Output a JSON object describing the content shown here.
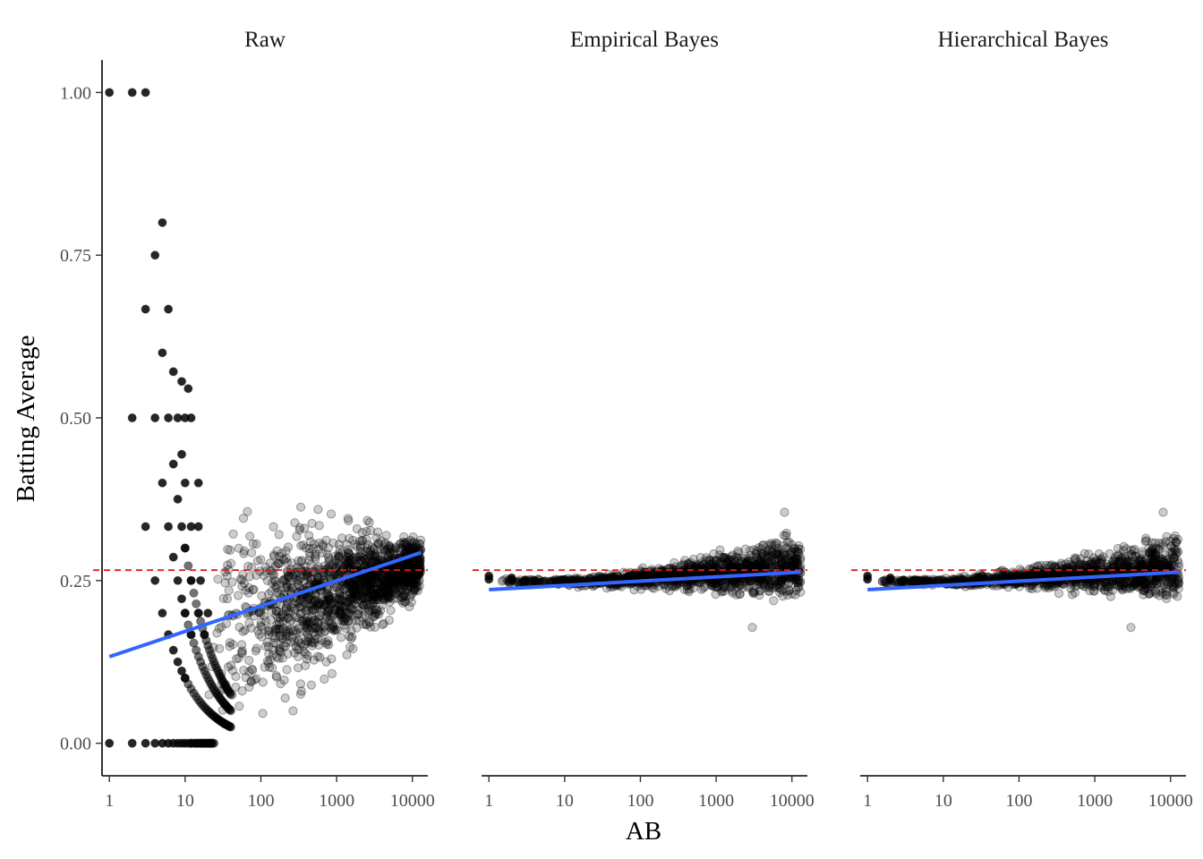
{
  "chart_data": {
    "type": "scatter",
    "xlabel": "AB",
    "ylabel": "Batting Average",
    "x_scale": "log10",
    "xlim": [
      0.8,
      16000
    ],
    "ylim": [
      -0.05,
      1.05
    ],
    "x_ticks": [
      {
        "value": 1,
        "label": "1"
      },
      {
        "value": 10,
        "label": "10"
      },
      {
        "value": 100,
        "label": "100"
      },
      {
        "value": 1000,
        "label": "1000"
      },
      {
        "value": 10000,
        "label": "10000"
      }
    ],
    "y_ticks": [
      {
        "value": 0.0,
        "label": "0.00"
      },
      {
        "value": 0.25,
        "label": "0.25"
      },
      {
        "value": 0.5,
        "label": "0.50"
      },
      {
        "value": 0.75,
        "label": "0.75"
      },
      {
        "value": 1.0,
        "label": "1.00"
      }
    ],
    "grid": false,
    "point_color": "#000000",
    "point_opacity": 0.2,
    "reference_line": {
      "y": 0.266,
      "color": "#e41a1c",
      "style": "dashed"
    },
    "trend_color": "#3366ff",
    "panels": [
      {
        "title": "Raw",
        "trend": {
          "x": [
            1,
            13000
          ],
          "y": [
            0.133,
            0.293
          ]
        },
        "cloud": {
          "x_range": [
            20,
            13000
          ],
          "center_at_x20": 0.17,
          "center_at_x13000": 0.275,
          "spread_at_x20": 0.16,
          "spread_at_x13000": 0.035
        },
        "discrete_points": [
          {
            "x": 1,
            "y": 1.0
          },
          {
            "x": 2,
            "y": 1.0
          },
          {
            "x": 3,
            "y": 1.0
          },
          {
            "x": 4,
            "y": 0.75
          },
          {
            "x": 5,
            "y": 0.8
          },
          {
            "x": 3,
            "y": 0.667
          },
          {
            "x": 6,
            "y": 0.667
          },
          {
            "x": 5,
            "y": 0.6
          },
          {
            "x": 7,
            "y": 0.571
          },
          {
            "x": 9,
            "y": 0.556
          },
          {
            "x": 11,
            "y": 0.545
          },
          {
            "x": 2,
            "y": 0.5
          },
          {
            "x": 4,
            "y": 0.5
          },
          {
            "x": 6,
            "y": 0.5
          },
          {
            "x": 8,
            "y": 0.5
          },
          {
            "x": 10,
            "y": 0.5
          },
          {
            "x": 12,
            "y": 0.5
          },
          {
            "x": 3,
            "y": 0.333
          },
          {
            "x": 6,
            "y": 0.333
          },
          {
            "x": 9,
            "y": 0.333
          },
          {
            "x": 12,
            "y": 0.333
          },
          {
            "x": 15,
            "y": 0.333
          },
          {
            "x": 4,
            "y": 0.25
          },
          {
            "x": 8,
            "y": 0.25
          },
          {
            "x": 12,
            "y": 0.25
          },
          {
            "x": 16,
            "y": 0.25
          },
          {
            "x": 5,
            "y": 0.4
          },
          {
            "x": 10,
            "y": 0.4
          },
          {
            "x": 15,
            "y": 0.4
          },
          {
            "x": 5,
            "y": 0.2
          },
          {
            "x": 10,
            "y": 0.2
          },
          {
            "x": 15,
            "y": 0.2
          },
          {
            "x": 20,
            "y": 0.2
          },
          {
            "x": 6,
            "y": 0.167
          },
          {
            "x": 12,
            "y": 0.167
          },
          {
            "x": 18,
            "y": 0.167
          },
          {
            "x": 7,
            "y": 0.143
          },
          {
            "x": 7,
            "y": 0.286
          },
          {
            "x": 7,
            "y": 0.429
          },
          {
            "x": 8,
            "y": 0.125
          },
          {
            "x": 8,
            "y": 0.375
          },
          {
            "x": 9,
            "y": 0.111
          },
          {
            "x": 9,
            "y": 0.222
          },
          {
            "x": 9,
            "y": 0.444
          },
          {
            "x": 10,
            "y": 0.1
          },
          {
            "x": 10,
            "y": 0.3
          },
          {
            "x": 1,
            "y": 0.0
          },
          {
            "x": 2,
            "y": 0.0
          },
          {
            "x": 3,
            "y": 0.0
          },
          {
            "x": 4,
            "y": 0.0
          },
          {
            "x": 5,
            "y": 0.0
          },
          {
            "x": 6,
            "y": 0.0
          },
          {
            "x": 7,
            "y": 0.0
          },
          {
            "x": 8,
            "y": 0.0
          },
          {
            "x": 9,
            "y": 0.0
          },
          {
            "x": 10,
            "y": 0.0
          },
          {
            "x": 12,
            "y": 0.0
          },
          {
            "x": 14,
            "y": 0.0
          },
          {
            "x": 16,
            "y": 0.0
          },
          {
            "x": 18,
            "y": 0.0
          },
          {
            "x": 20,
            "y": 0.0
          },
          {
            "x": 22,
            "y": 0.0
          }
        ]
      },
      {
        "title": "Empirical Bayes",
        "trend": {
          "x": [
            1,
            13000
          ],
          "y": [
            0.236,
            0.263
          ]
        },
        "cloud": {
          "x_range": [
            1,
            13000
          ],
          "center_at_x20": 0.248,
          "center_at_x13000": 0.27,
          "spread_at_x20": 0.006,
          "spread_at_x13000": 0.04
        },
        "discrete_points": [
          {
            "x": 1,
            "y": 0.252
          },
          {
            "x": 2,
            "y": 0.251
          },
          {
            "x": 3,
            "y": 0.251
          },
          {
            "x": 4,
            "y": 0.25
          },
          {
            "x": 1,
            "y": 0.257
          },
          {
            "x": 2,
            "y": 0.254
          }
        ],
        "outliers": [
          {
            "x": 3000,
            "y": 0.178
          },
          {
            "x": 8000,
            "y": 0.355
          }
        ]
      },
      {
        "title": "Hierarchical Bayes",
        "trend": {
          "x": [
            1,
            13000
          ],
          "y": [
            0.236,
            0.263
          ]
        },
        "cloud": {
          "x_range": [
            1,
            13000
          ],
          "center_at_x20": 0.248,
          "center_at_x13000": 0.27,
          "spread_at_x20": 0.006,
          "spread_at_x13000": 0.04
        },
        "discrete_points": [
          {
            "x": 1,
            "y": 0.252
          },
          {
            "x": 2,
            "y": 0.251
          },
          {
            "x": 3,
            "y": 0.251
          },
          {
            "x": 4,
            "y": 0.25
          },
          {
            "x": 1,
            "y": 0.257
          },
          {
            "x": 2,
            "y": 0.254
          }
        ],
        "outliers": [
          {
            "x": 3000,
            "y": 0.178
          },
          {
            "x": 8000,
            "y": 0.355
          }
        ]
      }
    ]
  }
}
